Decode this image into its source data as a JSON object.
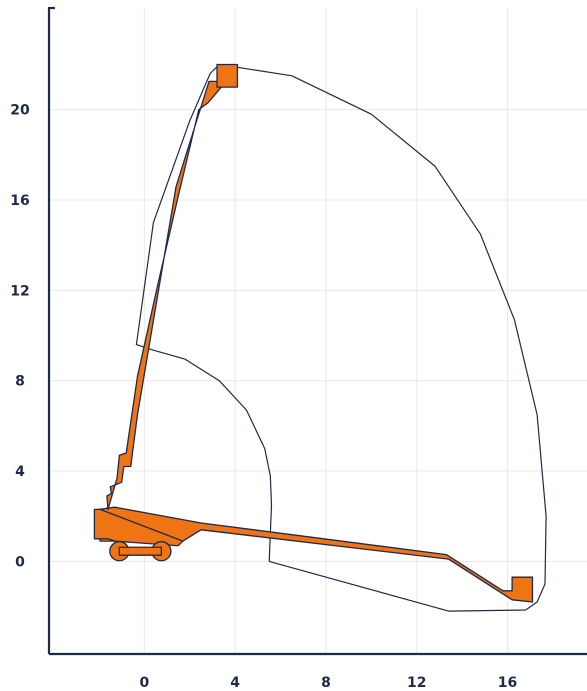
{
  "chart_data": {
    "type": "line",
    "title": "",
    "xlabel": "",
    "ylabel": "",
    "xlim": [
      -4.2,
      19.5
    ],
    "ylim": [
      -4.1,
      24.5
    ],
    "x_ticks": [
      0,
      4,
      8,
      12,
      16
    ],
    "x_tick_labels": [
      "0",
      "4",
      "8",
      "12",
      "16"
    ],
    "y_ticks": [
      0,
      4,
      8,
      12,
      16,
      20
    ],
    "y_tick_labels": [
      "0",
      "4",
      "8",
      "12",
      "16",
      "20"
    ],
    "grid": true,
    "colors": {
      "axis": "#1e2a4a",
      "grid": "#e8e8e8",
      "envelope": "#1e2a4a",
      "machine_fill": "#ef7414",
      "machine_stroke": "#1e2a4a",
      "labels": "#1e2a4a"
    },
    "series": [
      {
        "kind": "working_envelope",
        "x": [
          3.3,
          6.5,
          10.0,
          12.8,
          14.8,
          16.3,
          17.3,
          17.7,
          17.65,
          17.3,
          16.8,
          13.4,
          5.5,
          5.6,
          5.55,
          5.3,
          4.5,
          3.3,
          1.8,
          0.4,
          -0.35,
          0.4,
          2.0,
          2.9,
          3.3
        ],
        "y": [
          22.0,
          21.5,
          19.8,
          17.5,
          14.5,
          10.7,
          6.5,
          2.0,
          -1.0,
          -1.8,
          -2.15,
          -2.2,
          0.0,
          2.5,
          3.8,
          5.0,
          6.7,
          8.0,
          8.95,
          9.35,
          9.6,
          15.0,
          19.5,
          21.6,
          22.0
        ]
      },
      {
        "kind": "machine_boom_lowered",
        "x": [
          -2.0,
          -1.3,
          2.5,
          13.3,
          15.8,
          16.2,
          16.2,
          17.1,
          17.1,
          16.2,
          13.4,
          2.5,
          1.7,
          -1.95,
          -2.0
        ],
        "y": [
          2.3,
          2.4,
          1.7,
          0.3,
          -1.3,
          -1.3,
          -0.7,
          -0.7,
          -1.8,
          -1.7,
          0.1,
          1.4,
          0.9,
          0.9,
          2.3
        ]
      },
      {
        "kind": "machine_boom_raised",
        "x": [
          -1.6,
          -1.65,
          -1.45,
          -1.5,
          -1.0,
          -0.9,
          -0.6,
          -0.3,
          1.4,
          2.85,
          3.6,
          2.8,
          2.4,
          1.5,
          0.6,
          -0.3,
          -0.8,
          -1.1,
          -1.2,
          -1.6
        ],
        "y": [
          2.3,
          2.9,
          3.0,
          3.3,
          3.5,
          4.2,
          4.2,
          6.5,
          16.6,
          21.25,
          21.25,
          20.3,
          20.0,
          16.2,
          12.3,
          8.2,
          4.8,
          4.7,
          3.7,
          2.3
        ]
      },
      {
        "kind": "machine_chassis",
        "x": [
          -2.2,
          -1.95,
          1.7,
          1.5,
          1.4,
          -1.3,
          -1.6,
          -2.2,
          -2.2
        ],
        "y": [
          2.3,
          2.3,
          0.9,
          0.7,
          0.7,
          0.9,
          1.0,
          1.0,
          2.3
        ]
      },
      {
        "kind": "machine_wheels",
        "points": [
          {
            "x": -1.1,
            "y": 0.45
          },
          {
            "x": 0.75,
            "y": 0.45
          }
        ],
        "radius": 0.42
      },
      {
        "kind": "machine_wheelbase",
        "x": [
          -1.1,
          0.75
        ],
        "y": [
          0.45,
          0.45
        ]
      },
      {
        "kind": "machine_platform_raised",
        "x": [
          3.2,
          4.1,
          4.1,
          3.2,
          3.2
        ],
        "y": [
          21.0,
          21.0,
          22.0,
          22.0,
          21.0
        ]
      }
    ]
  }
}
